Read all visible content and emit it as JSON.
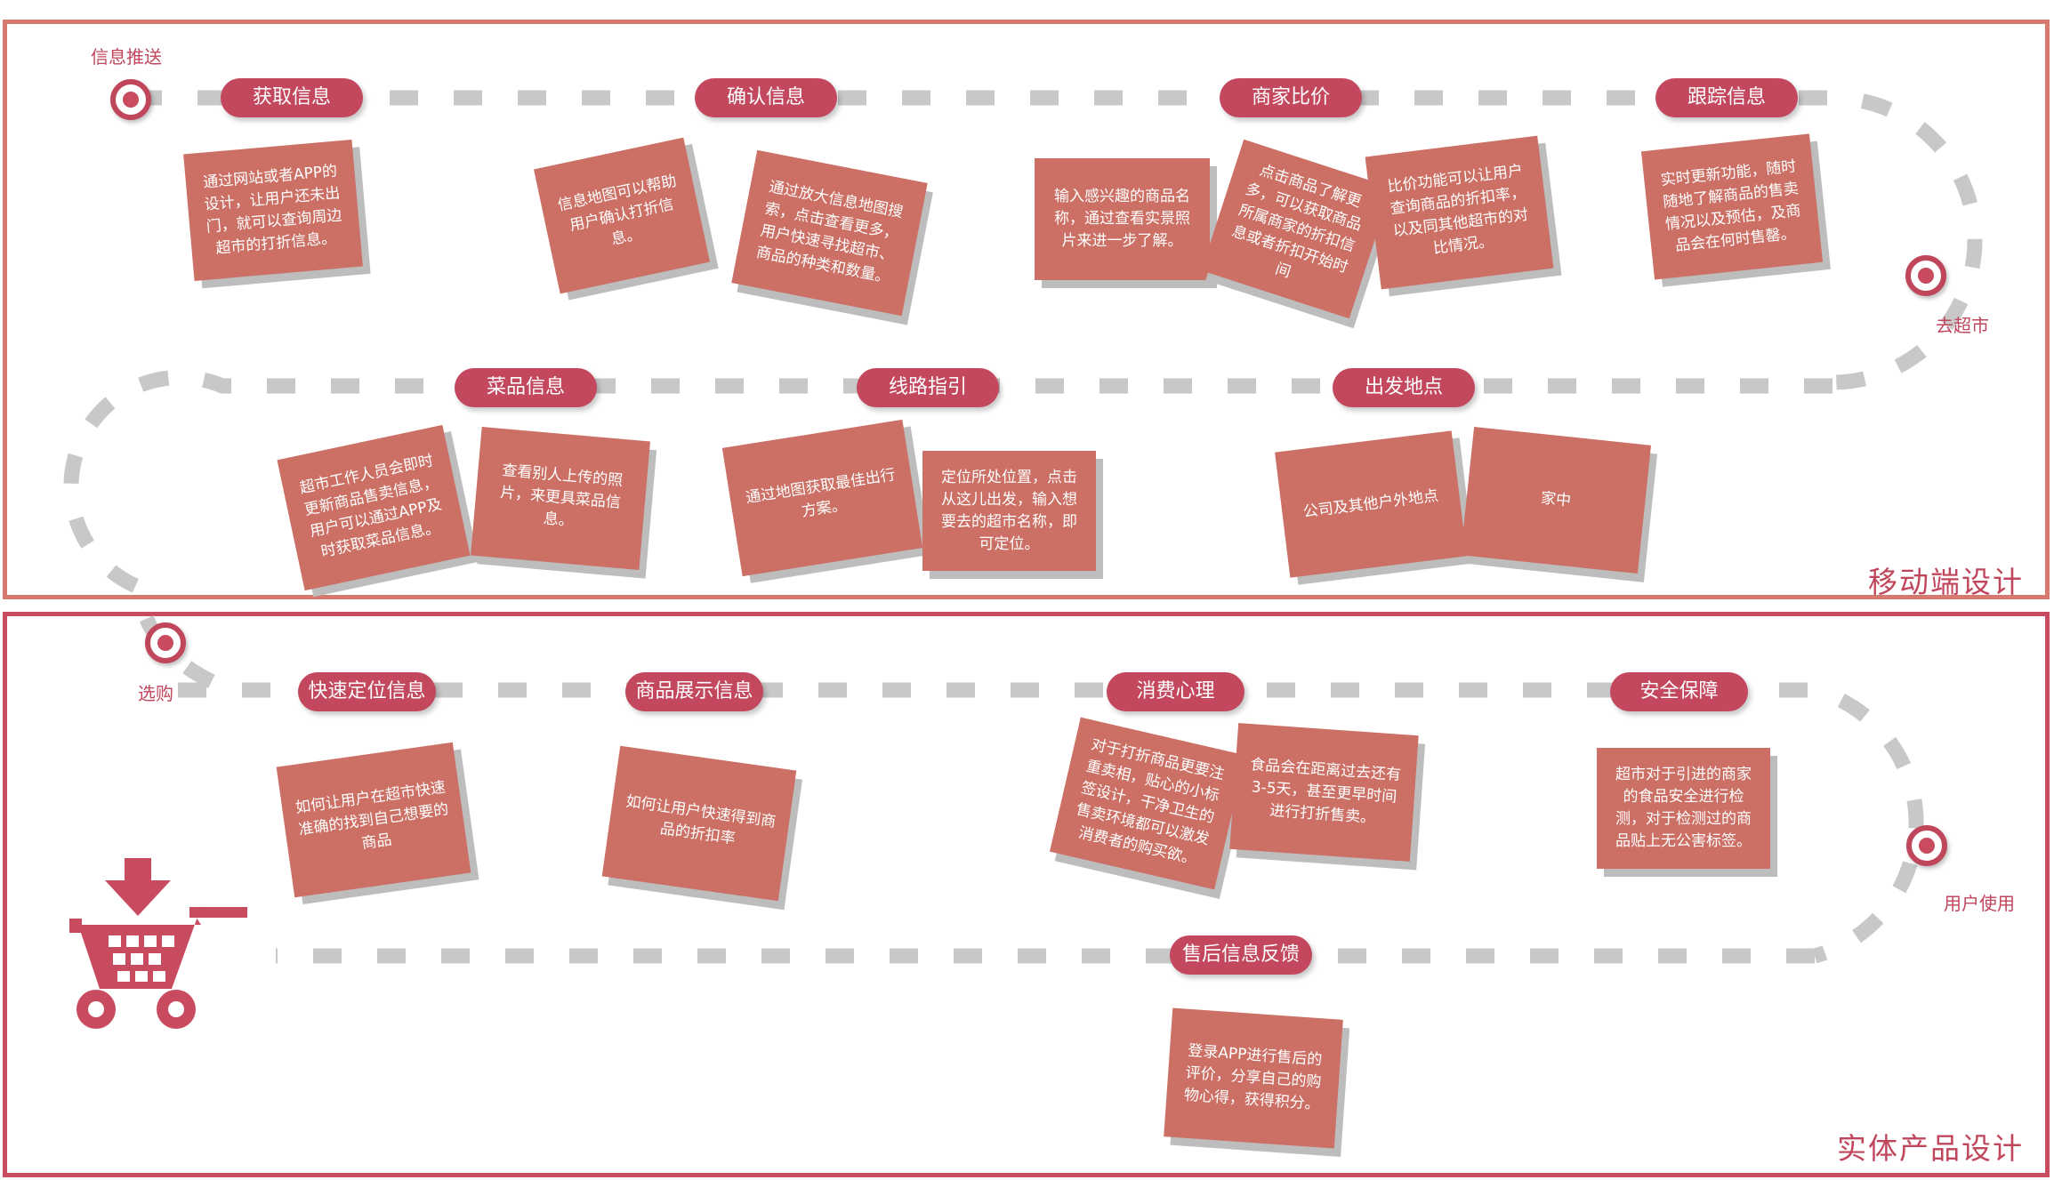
{
  "sections": {
    "mobile_title": "移动端设计",
    "physical_title": "实体产品设计"
  },
  "nodes": {
    "push": "信息推送",
    "go_market": "去超市",
    "select": "选购",
    "use": "用户使用"
  },
  "stages": {
    "get_info": "获取信息",
    "confirm_info": "确认信息",
    "compare": "商家比价",
    "track": "跟踪信息",
    "dish_info": "菜品信息",
    "route": "线路指引",
    "departure": "出发地点",
    "quick_locate": "快速定位信息",
    "display": "商品展示信息",
    "psychology": "消费心理",
    "safety": "安全保障",
    "after_sale": "售后信息反馈"
  },
  "cards": {
    "get_info_1": "通过网站或者APP的设计，让用户还未出门，就可以查询周边超市的打折信息。",
    "confirm_1": "信息地图可以帮助用户确认打折信息。",
    "confirm_2": "通过放大信息地图搜索，点击查看更多，用户快速寻找超市、商品的种类和数量。",
    "compare_1": "输入感兴趣的商品名称，通过查看实景照片来进一步了解。",
    "compare_2": "点击商品了解更多，可以获取商品所属商家的折扣信息或者折扣开始时间",
    "compare_3": "比价功能可以让用户查询商品的折扣率，以及同其他超市的对比情况。",
    "track_1": "实时更新功能，随时随地了解商品的售卖情况以及预估，及商品会在何时售罄。",
    "dish_1": "超市工作人员会即时更新商品售卖信息，用户可以通过APP及时获取菜品信息。",
    "dish_2": "查看别人上传的照片，来更具菜品信息。",
    "route_1": "通过地图获取最佳出行方案。",
    "route_2": "定位所处位置，点击从这儿出发，输入想要去的超市名称，即可定位。",
    "departure_1": "公司及其他户外地点",
    "departure_2": "家中",
    "locate_1": "如何让用户在超市快速准确的找到自己想要的商品",
    "display_1": "如何让用户快速得到商品的折扣率",
    "psych_1": "对于打折商品更要注重卖相，贴心的小标签设计，干净卫生的售卖环境都可以激发消费者的购买欲。",
    "psych_2": "食品会在距离过去还有3-5天，甚至更早时间进行打折售卖。",
    "safety_1": "超市对于引进的商家的食品安全进行检测，对于检测过的商品贴上无公害标签。",
    "after_1": "登录APP进行售后的评价，分享自己的购物心得，获得积分。"
  },
  "colors": {
    "pill": "#c3475d",
    "card": "#cc6f64",
    "card_shadow": "#bdbdbd",
    "path": "#c8c8c8",
    "accent": "#c0465c",
    "mobile_border": "#d57a6e",
    "physical_border": "#c84b5f"
  },
  "icons": {
    "cart": "shopping-cart-icon",
    "arrow": "down-arrow-icon"
  }
}
